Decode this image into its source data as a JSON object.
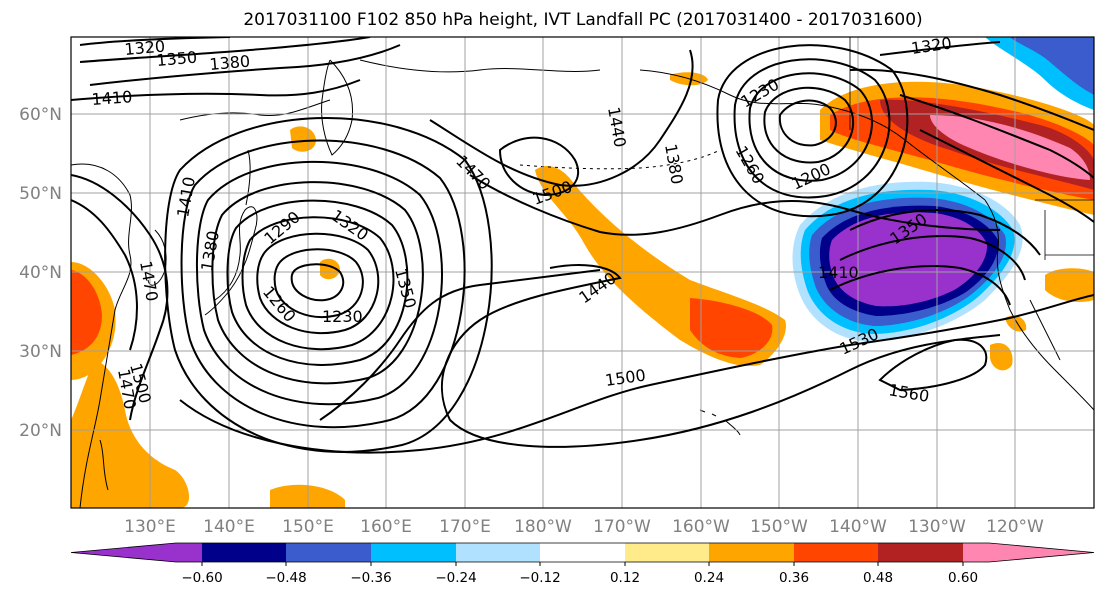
{
  "title": "2017031100 F102 850 hPa height, IVT Landfall PC (2017031400 - 2017031600)",
  "latitude_labels": [
    "60°N",
    "50°N",
    "40°N",
    "30°N",
    "20°N"
  ],
  "longitude_labels": [
    "130°E",
    "140°E",
    "150°E",
    "160°E",
    "170°E",
    "180°W",
    "170°W",
    "160°W",
    "150°W",
    "140°W",
    "130°W",
    "120°W"
  ],
  "contour_labels": [
    "1320",
    "1350",
    "1380",
    "1410",
    "1410",
    "1470",
    "1470",
    "1380",
    "1500",
    "1290",
    "1320",
    "1260",
    "1230",
    "1350",
    "1470",
    "1500",
    "1440",
    "1440",
    "1380",
    "1230",
    "1260",
    "1200",
    "1320",
    "1350",
    "1410",
    "1530",
    "1560",
    "1500"
  ],
  "colorbar": {
    "colors": [
      "#9932cc",
      "#00008b",
      "#3a5ccc",
      "#00bfff",
      "#b0e2ff",
      "#ffffff",
      "#ffeb8a",
      "#ffa500",
      "#ff4500",
      "#b22222",
      "#ff86b0"
    ],
    "ticks": [
      "−0.60",
      "−0.48",
      "−0.36",
      "−0.24",
      "−0.12",
      "0.12",
      "0.24",
      "0.36",
      "0.48",
      "0.60"
    ]
  }
}
